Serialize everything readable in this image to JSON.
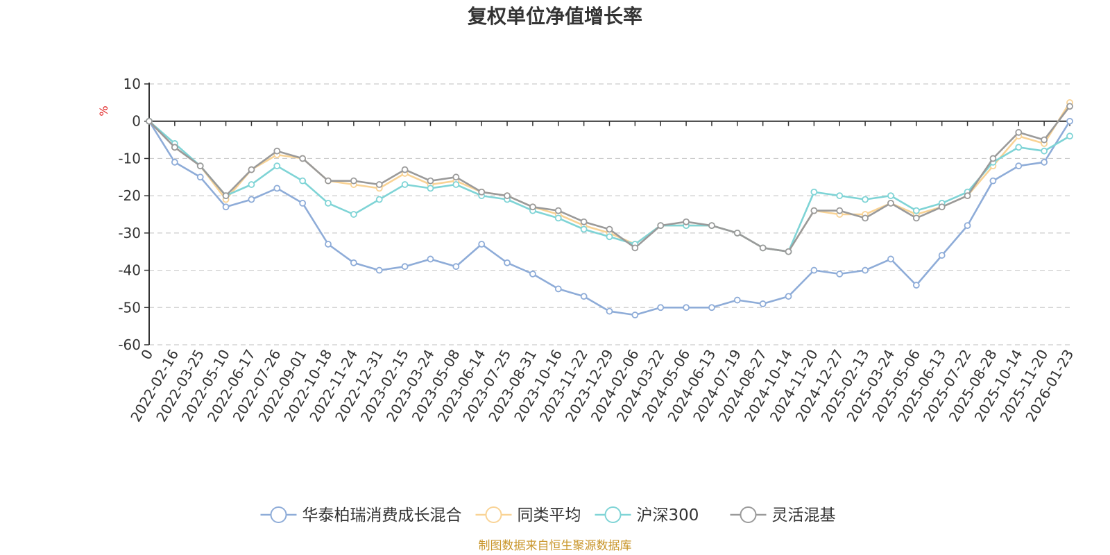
{
  "chart_data": {
    "type": "line",
    "title": "复权单位净值增长率",
    "ylabel": "%",
    "ylim": [
      -60,
      10
    ],
    "yticks": [
      "10",
      "0",
      "-10",
      "-20",
      "-30",
      "-40",
      "-50",
      "-60"
    ],
    "xticks": [
      "0",
      "2022-02-16",
      "2022-03-25",
      "2022-05-10",
      "2022-06-17",
      "2022-07-26",
      "2022-09-01",
      "2022-10-18",
      "2022-11-24",
      "2022-12-31",
      "2023-02-15",
      "2023-03-24",
      "2023-05-08",
      "2023-06-14",
      "2023-07-25",
      "2023-08-31",
      "2023-10-16",
      "2023-11-22",
      "2023-12-29",
      "2024-02-06",
      "2024-03-22",
      "2024-05-06",
      "2024-06-13",
      "2024-07-19",
      "2024-08-27",
      "2024-10-14",
      "2024-11-20",
      "2024-12-27",
      "2025-02-13",
      "2025-03-24",
      "2025-05-06",
      "2025-06-13",
      "2025-07-22",
      "2025-08-28",
      "2025-10-14",
      "2025-11-20",
      "2026-01-23"
    ],
    "x": [
      "0",
      "2022-02-16",
      "2022-03-25",
      "2022-05-10",
      "2022-06-17",
      "2022-07-26",
      "2022-09-01",
      "2022-10-18",
      "2022-11-24",
      "2022-12-31",
      "2023-02-15",
      "2023-03-24",
      "2023-05-08",
      "2023-06-14",
      "2023-07-25",
      "2023-08-31",
      "2023-10-16",
      "2023-11-22",
      "2023-12-29",
      "2024-02-06",
      "2024-03-22",
      "2024-05-06",
      "2024-06-13",
      "2024-07-19",
      "2024-08-27",
      "2024-10-14",
      "2024-11-20",
      "2024-12-27",
      "2025-02-13",
      "2025-03-24",
      "2025-05-06",
      "2025-06-13",
      "2025-07-22",
      "2025-08-28",
      "2025-10-14",
      "2025-11-20",
      "2026-01-23"
    ],
    "grid": true,
    "legend_position": "bottom",
    "series": [
      {
        "name": "华泰柏瑞消费成长混合",
        "color": "#8eacd8",
        "values": [
          0,
          -11,
          -15,
          -23,
          -21,
          -18,
          -22,
          -33,
          -38,
          -40,
          -39,
          -37,
          -39,
          -33,
          -38,
          -41,
          -45,
          -47,
          -51,
          -52,
          -50,
          -50,
          -50,
          -48,
          -49,
          -47,
          -40,
          -41,
          -40,
          -37,
          -44,
          -36,
          -28,
          -16,
          -12,
          -11,
          0
        ]
      },
      {
        "name": "同类平均",
        "color": "#f9d395",
        "values": [
          0,
          -7,
          -12,
          -21,
          -13,
          -9,
          -10,
          -16,
          -17,
          -18,
          -14,
          -17,
          -16,
          -19,
          -20,
          -23,
          -25,
          -28,
          -30,
          -33,
          -28,
          -28,
          -28,
          -30,
          -34,
          -35,
          -24,
          -25,
          -25,
          -22,
          -25,
          -23,
          -20,
          -12,
          -4,
          -6,
          5
        ]
      },
      {
        "name": "沪深300",
        "color": "#7fd4d6",
        "values": [
          0,
          -6,
          -12,
          -20,
          -17,
          -12,
          -16,
          -22,
          -25,
          -21,
          -17,
          -18,
          -17,
          -20,
          -21,
          -24,
          -26,
          -29,
          -31,
          -33,
          -28,
          -28,
          -28,
          -30,
          -34,
          -35,
          -19,
          -20,
          -21,
          -20,
          -24,
          -22,
          -19,
          -11,
          -7,
          -8,
          -4
        ]
      },
      {
        "name": "灵活混基",
        "color": "#9a9a9a",
        "values": [
          0,
          -7,
          -12,
          -20,
          -13,
          -8,
          -10,
          -16,
          -16,
          -17,
          -13,
          -16,
          -15,
          -19,
          -20,
          -23,
          -24,
          -27,
          -29,
          -34,
          -28,
          -27,
          -28,
          -30,
          -34,
          -35,
          -24,
          -24,
          -26,
          -22,
          -26,
          -23,
          -20,
          -10,
          -3,
          -5,
          4
        ]
      }
    ]
  },
  "source_note": "制图数据来自恒生聚源数据库"
}
